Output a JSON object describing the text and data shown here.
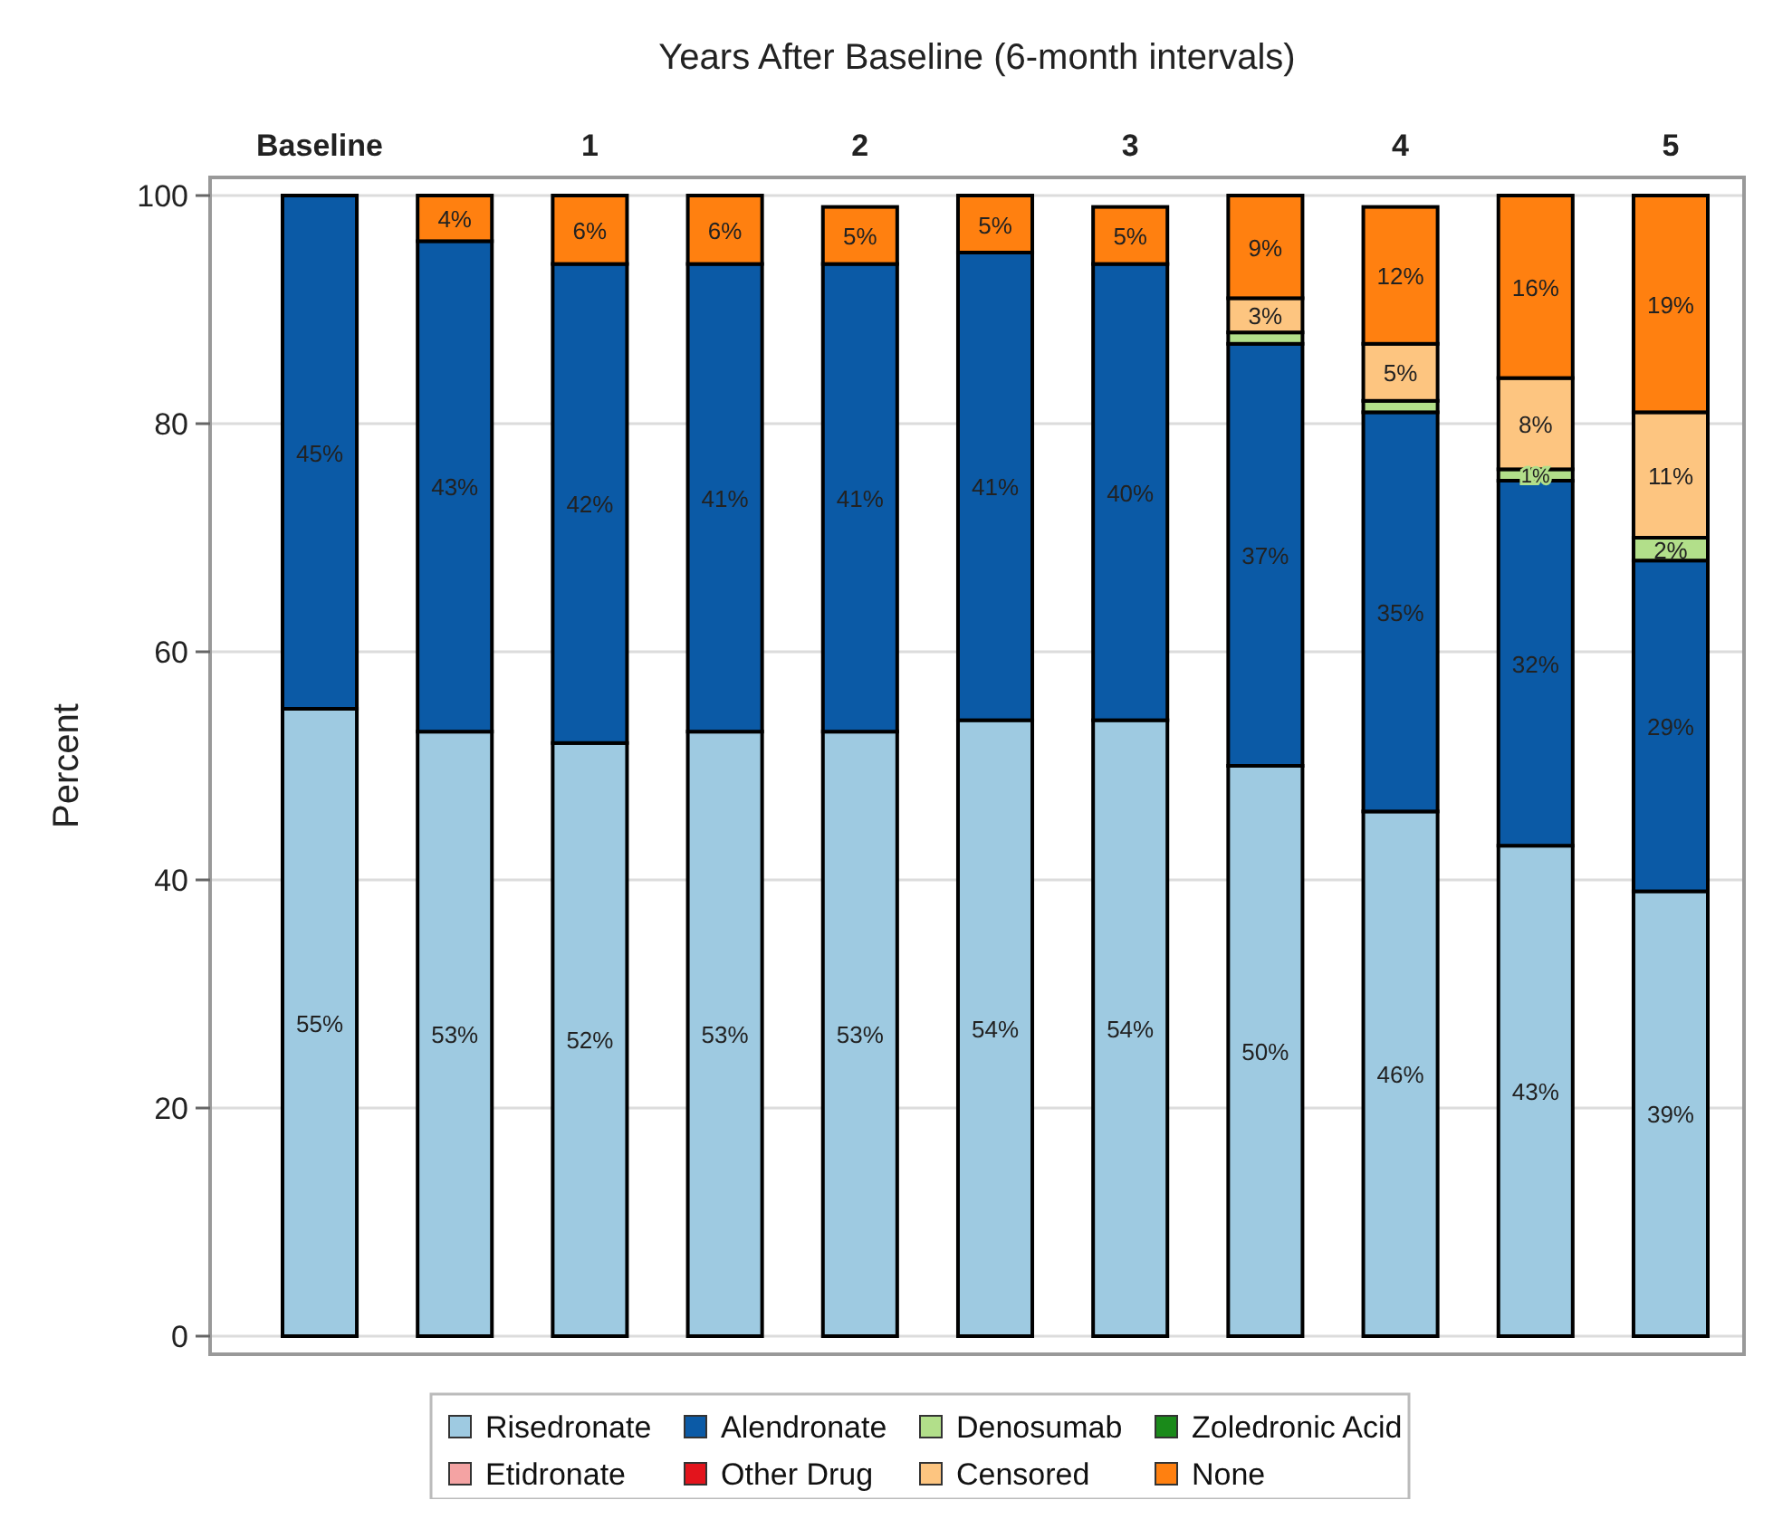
{
  "chart_data": {
    "type": "bar",
    "stacked": true,
    "xlabel": "Years After Baseline (6-month intervals)",
    "ylabel": "Percent",
    "categories": [
      "Baseline",
      null,
      "1",
      null,
      "2",
      null,
      "3",
      null,
      "4",
      null,
      "5"
    ],
    "ylim": [
      0,
      100
    ],
    "yticks": [
      0,
      20,
      40,
      60,
      80,
      100
    ],
    "grid": "y",
    "legend": "bottom",
    "series": [
      {
        "name": "Risedronate",
        "color": "#9ecae1",
        "values": [
          55,
          53,
          52,
          53,
          53,
          54,
          54,
          50,
          46,
          43,
          39
        ],
        "value_labels": [
          "55%",
          "53%",
          "52%",
          "53%",
          "53%",
          "54%",
          "54%",
          "50%",
          "46%",
          "43%",
          "39%"
        ]
      },
      {
        "name": "Alendronate",
        "color": "#0b5aa6",
        "values": [
          45,
          43,
          42,
          41,
          41,
          41,
          40,
          37,
          35,
          32,
          29
        ],
        "value_labels": [
          "45%",
          "43%",
          "42%",
          "41%",
          "41%",
          "41%",
          "40%",
          "37%",
          "35%",
          "32%",
          "29%"
        ]
      },
      {
        "name": "Denosumab",
        "color": "#b2df8a",
        "values": [
          null,
          null,
          null,
          null,
          null,
          null,
          null,
          1,
          1,
          1,
          2
        ],
        "value_labels": [
          null,
          null,
          null,
          null,
          null,
          null,
          null,
          null,
          null,
          "1%",
          "2%"
        ]
      },
      {
        "name": "Zoledronic Acid",
        "color": "#1a8a1a",
        "values": [
          null,
          null,
          null,
          null,
          null,
          null,
          null,
          null,
          null,
          null,
          null
        ]
      },
      {
        "name": "Etidronate",
        "color": "#f4a3a3",
        "values": [
          null,
          null,
          null,
          null,
          null,
          null,
          null,
          null,
          null,
          null,
          null
        ]
      },
      {
        "name": "Other Drug",
        "color": "#e3141c",
        "values": [
          null,
          null,
          null,
          null,
          null,
          null,
          null,
          null,
          null,
          null,
          null
        ]
      },
      {
        "name": "Censored",
        "color": "#fdc580",
        "values": [
          null,
          null,
          null,
          null,
          null,
          null,
          null,
          3,
          5,
          8,
          11
        ],
        "value_labels": [
          null,
          null,
          null,
          null,
          null,
          null,
          null,
          "3%",
          "5%",
          "8%",
          "11%"
        ]
      },
      {
        "name": "None",
        "color": "#ff8010",
        "values": [
          null,
          4,
          6,
          6,
          5,
          5,
          5,
          9,
          12,
          16,
          19
        ],
        "value_labels": [
          null,
          "4%",
          "6%",
          "6%",
          "5%",
          "5%",
          "5%",
          "9%",
          "12%",
          "16%",
          "19%"
        ]
      }
    ]
  }
}
